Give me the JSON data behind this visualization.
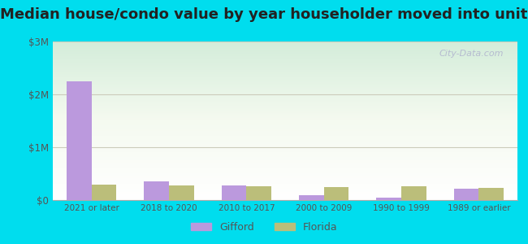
{
  "title": "Median house/condo value by year householder moved into unit",
  "categories": [
    "2021 or later",
    "2018 to 2020",
    "2010 to 2017",
    "2000 to 2009",
    "1990 to 1999",
    "1989 or earlier"
  ],
  "gifford_values": [
    2250000,
    350000,
    270000,
    100000,
    50000,
    210000
  ],
  "florida_values": [
    300000,
    280000,
    265000,
    250000,
    260000,
    235000
  ],
  "gifford_color": "#bb99dd",
  "florida_color": "#bbbe7a",
  "background_outer": "#00ddee",
  "grid_color": "#ccccbb",
  "yticks": [
    0,
    1000000,
    2000000,
    3000000
  ],
  "ytick_labels": [
    "$0",
    "$1M",
    "$2M",
    "$3M"
  ],
  "ylim": [
    0,
    3000000
  ],
  "title_fontsize": 13,
  "watermark": "City-Data.com",
  "legend_gifford": "Gifford",
  "legend_florida": "Florida",
  "bar_width": 0.32
}
